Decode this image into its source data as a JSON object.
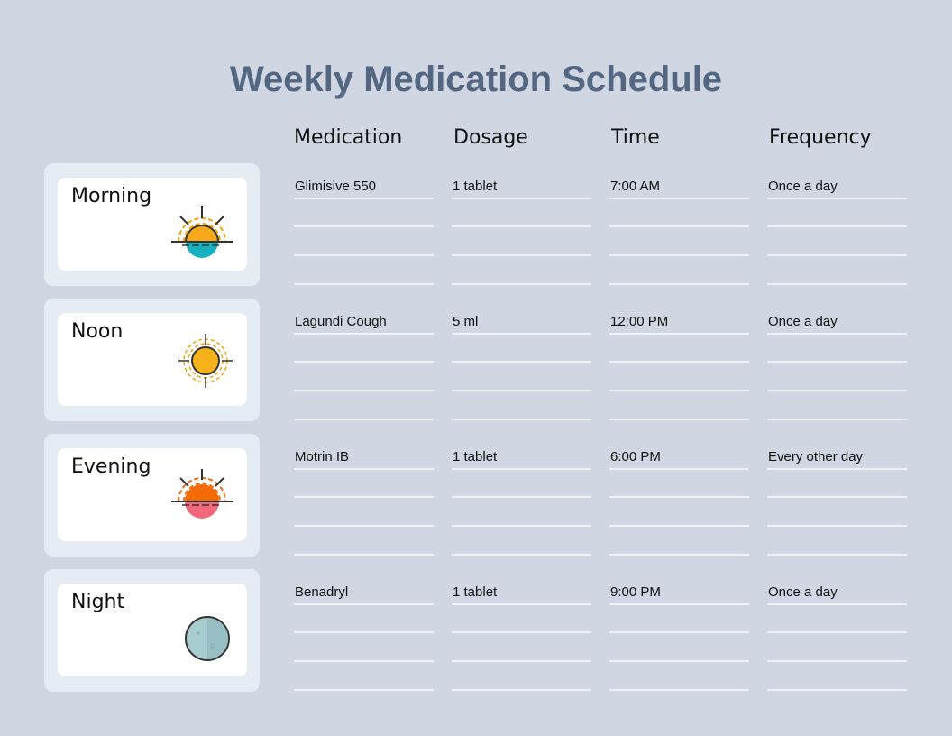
{
  "title": "Weekly Medication Schedule",
  "headers": [
    "Medication",
    "Dosage",
    "Time",
    "Frequency"
  ],
  "rows": [
    {
      "period": "Morning",
      "icon": "sunrise-icon",
      "cells": [
        "Glimisive 550",
        "1 tablet",
        "7:00 AM",
        "Once a day"
      ]
    },
    {
      "period": "Noon",
      "icon": "sun-icon",
      "cells": [
        "Lagundi Cough",
        "5 ml",
        "12:00 PM",
        "Once a day"
      ]
    },
    {
      "period": "Evening",
      "icon": "sunset-icon",
      "cells": [
        "Motrin IB",
        "1 tablet",
        "6:00 PM",
        "Every other day"
      ]
    },
    {
      "period": "Night",
      "icon": "moon-icon",
      "cells": [
        "Benadryl",
        "1 tablet",
        "9:00 PM",
        "Once a day"
      ]
    }
  ],
  "colors": {
    "title": "#536682",
    "background": "#d0d7e2",
    "card": "#e6ecf3"
  }
}
